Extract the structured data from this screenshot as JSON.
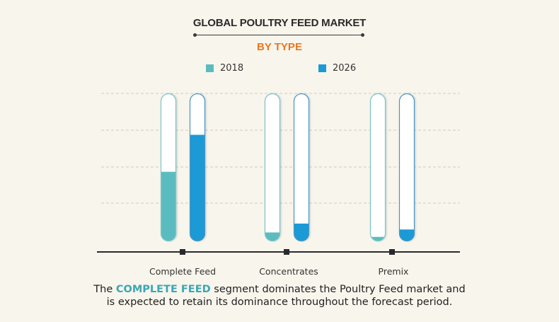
{
  "header": {
    "title": "GLOBAL POULTRY FEED  MARKET",
    "subtitle": "BY TYPE"
  },
  "legend": [
    {
      "label": "2018",
      "color": "#5bbcbf"
    },
    {
      "label": "2026",
      "color": "#1b9ad6"
    }
  ],
  "chart_data": {
    "type": "bar",
    "title": "GLOBAL POULTRY FEED  MARKET",
    "subtitle": "BY TYPE",
    "xlabel": "",
    "ylabel": "",
    "categories": [
      "Complete Feed",
      "Concentrates",
      "Premix"
    ],
    "series": [
      {
        "name": "2018",
        "color": "#5bbcbf",
        "values": [
          47,
          6,
          3
        ]
      },
      {
        "name": "2026",
        "color": "#1b9ad6",
        "values": [
          72,
          12,
          8
        ]
      }
    ],
    "value_unit": "relative fill (% of tube), no numeric axis shown",
    "ylim": [
      0,
      100
    ],
    "grid": true,
    "legend_position": "top-center"
  },
  "caption": {
    "prefix": "The ",
    "highlight": "COMPLETE FEED",
    "line1_rest": " segment dominates the Poultry Feed market and",
    "line2": "is expected to retain its dominance throughout the forecast period."
  },
  "colors": {
    "background": "#f8f5ec",
    "accent_orange": "#e87722",
    "highlight_teal": "#3aa7b4",
    "axis": "#2a2a2a"
  }
}
